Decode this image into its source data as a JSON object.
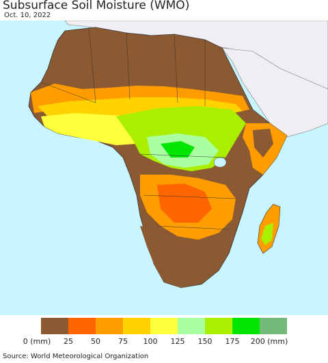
{
  "title": "Subsurface Soil Moisture (WMO)",
  "date": "Oct. 10, 2022",
  "source": "Source: World Meteorological Organization",
  "legend": {
    "colors": [
      "#8c5a32",
      "#ff6600",
      "#ff9d00",
      "#ffd200",
      "#ffff3c",
      "#aaffa0",
      "#aaee00",
      "#00e600",
      "#73b978"
    ],
    "labels": [
      "0 (mm)",
      "25",
      "50",
      "75",
      "100",
      "125",
      "150",
      "175",
      "200 (mm)"
    ]
  },
  "map": {
    "ocean_color": "#c8f5ff",
    "non_data_land_color": "#f0eef2",
    "dry_color": "#8c5a32"
  }
}
